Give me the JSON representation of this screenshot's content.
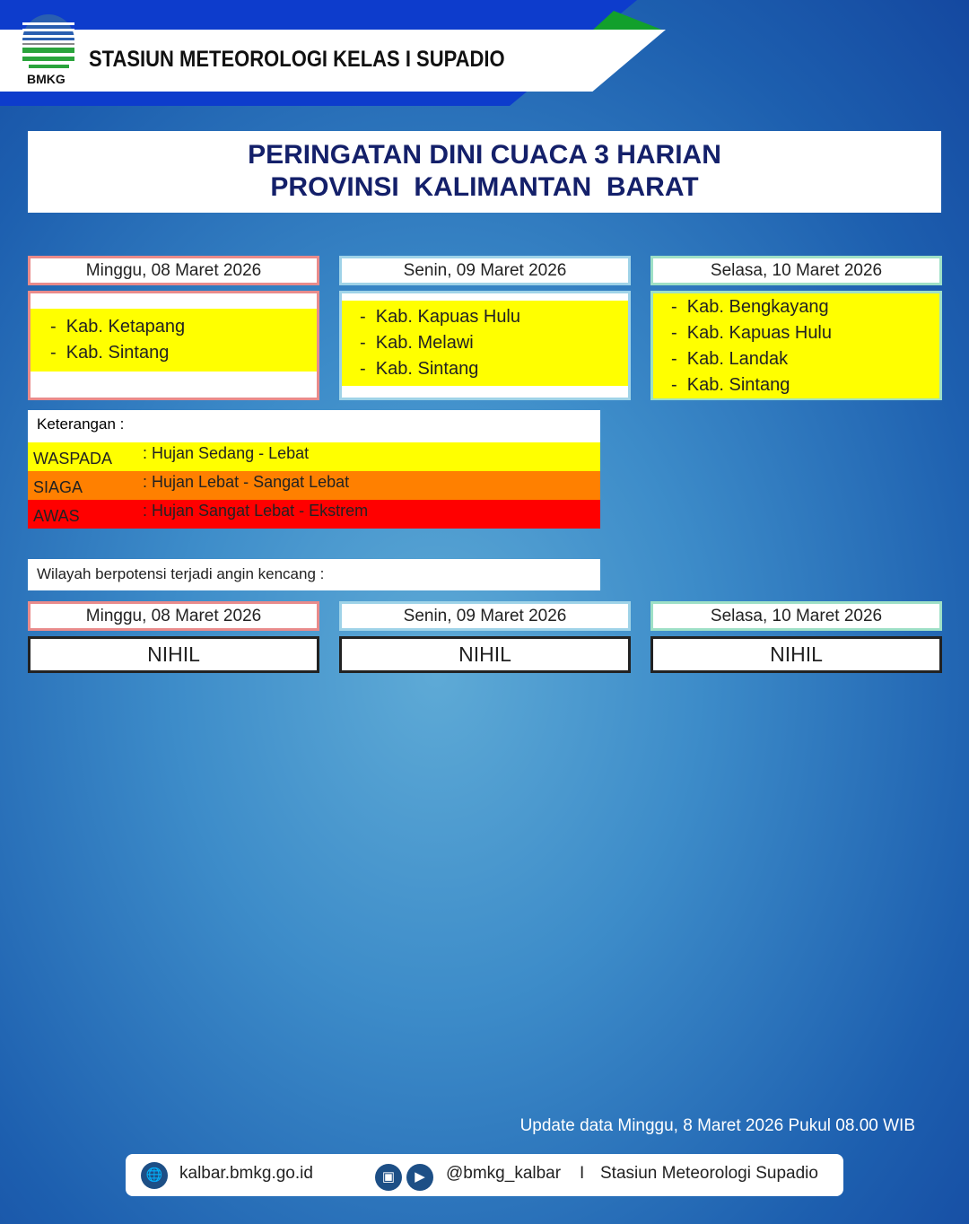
{
  "header": {
    "station": "STASIUN METEOROLOGI KELAS I SUPADIO",
    "logo_text": "BMKG"
  },
  "title": {
    "line1": "PERINGATAN DINI CUACA 3 HARIAN",
    "line2": "PROVINSI  KALIMANTAN  BARAT"
  },
  "days": [
    {
      "date": "Minggu, 08 Maret 2026",
      "areas": [
        "Kab. Ketapang",
        "Kab. Sintang"
      ],
      "wind": "NIHIL"
    },
    {
      "date": "Senin, 09 Maret 2026",
      "areas": [
        "Kab. Kapuas Hulu",
        "Kab. Melawi",
        "Kab. Sintang"
      ],
      "wind": "NIHIL"
    },
    {
      "date": "Selasa, 10 Maret 2026",
      "areas": [
        "Kab. Bengkayang",
        "Kab. Kapuas Hulu",
        "Kab. Landak",
        "Kab. Sintang"
      ],
      "wind": "NIHIL"
    }
  ],
  "legend": {
    "heading": "Keterangan :",
    "items": [
      {
        "level": "WASPADA",
        "desc": ": Hujan Sedang - Lebat",
        "color": "#ffff00"
      },
      {
        "level": "SIAGA",
        "desc": ": Hujan Lebat - Sangat Lebat",
        "color": "#ff8000"
      },
      {
        "level": "AWAS",
        "desc": ": Hujan Sangat Lebat - Ekstrem",
        "color": "#ff0000"
      }
    ]
  },
  "wind_heading": "Wilayah berpotensi terjadi angin kencang :",
  "update": "Update data Minggu, 8 Maret 2026 Pukul 08.00 WIB",
  "footer": {
    "website": "kalbar.bmkg.go.id",
    "handle": "@bmkg_kalbar",
    "separator": "I",
    "name": "Stasiun Meteorologi Supadio"
  }
}
